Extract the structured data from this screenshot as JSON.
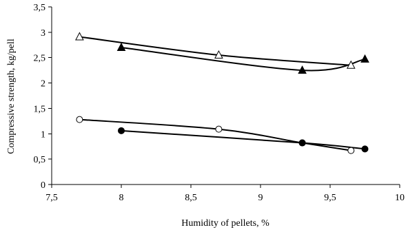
{
  "chart_data": {
    "type": "scatter",
    "title": "",
    "xlabel": "Humidity of pellets, %",
    "ylabel": "Compressive strength, kg/pell",
    "xlim": [
      7.5,
      10
    ],
    "ylim": [
      0,
      3.5
    ],
    "x_ticks": [
      "7,5",
      "8",
      "8,5",
      "9",
      "9,5",
      "10"
    ],
    "y_ticks": [
      "0",
      "0,5",
      "1",
      "1,5",
      "2",
      "2,5",
      "3",
      "3,5"
    ],
    "grid": false,
    "legend": "none",
    "series": [
      {
        "marker": "triangle-open",
        "curve": "smooth",
        "points": [
          [
            7.7,
            2.91
          ],
          [
            8.7,
            2.55
          ],
          [
            9.65,
            2.35
          ]
        ]
      },
      {
        "marker": "triangle-filled",
        "curve": "smooth",
        "points": [
          [
            8.0,
            2.7
          ],
          [
            9.3,
            2.25
          ],
          [
            9.75,
            2.47
          ]
        ]
      },
      {
        "marker": "circle-open",
        "curve": "smooth",
        "points": [
          [
            7.7,
            1.28
          ],
          [
            8.7,
            1.09
          ],
          [
            9.3,
            0.82
          ],
          [
            9.65,
            0.67
          ]
        ]
      },
      {
        "marker": "circle-filled",
        "curve": "smooth",
        "points": [
          [
            8.0,
            1.06
          ],
          [
            9.3,
            0.82
          ],
          [
            9.75,
            0.7
          ]
        ]
      }
    ]
  }
}
